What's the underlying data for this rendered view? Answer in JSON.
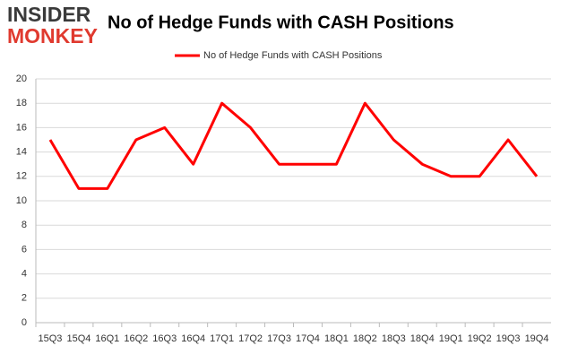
{
  "logo": [
    "INSIDER",
    "MONKEY"
  ],
  "chart_data": {
    "type": "line",
    "title": "No of Hedge Funds with CASH Positions",
    "categories": [
      "15Q3",
      "15Q4",
      "16Q1",
      "16Q2",
      "16Q3",
      "16Q4",
      "17Q1",
      "17Q2",
      "17Q3",
      "17Q4",
      "18Q1",
      "18Q2",
      "18Q3",
      "18Q4",
      "19Q1",
      "19Q2",
      "19Q3",
      "19Q4"
    ],
    "series": [
      {
        "name": "No of Hedge Funds with CASH Positions",
        "color": "#ff0000",
        "values": [
          15,
          11,
          11,
          15,
          16,
          13,
          18,
          16,
          13,
          13,
          13,
          18,
          15,
          13,
          12,
          12,
          15,
          12
        ]
      }
    ],
    "ylim": [
      0,
      20
    ],
    "yticks": [
      0,
      2,
      4,
      6,
      8,
      10,
      12,
      14,
      16,
      18,
      20
    ],
    "grid": true,
    "legend": "top"
  }
}
